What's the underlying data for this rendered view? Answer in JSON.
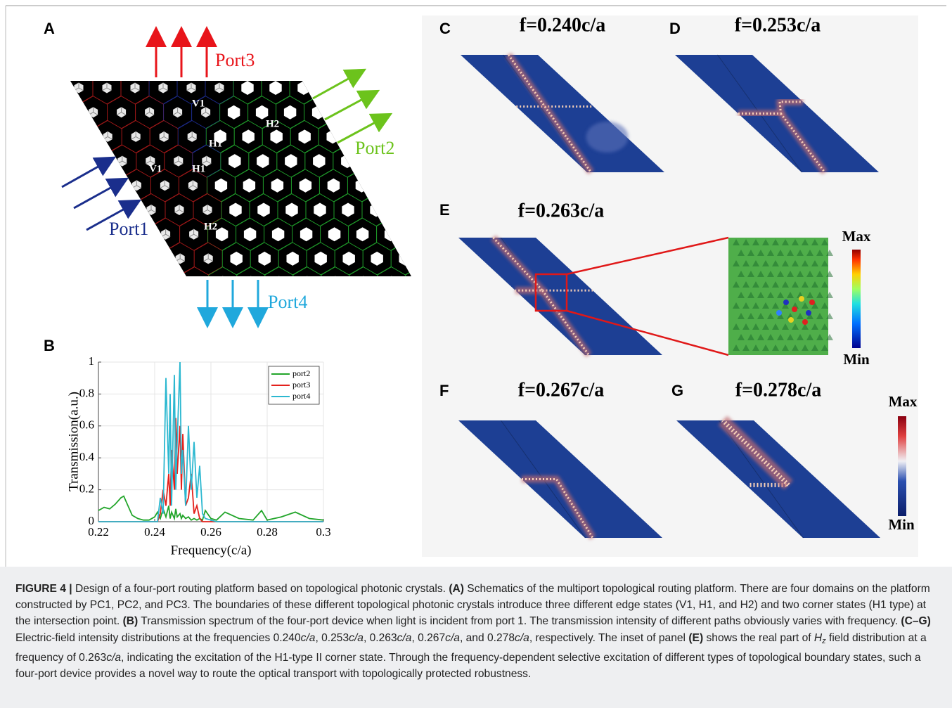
{
  "panel_a": {
    "label": "A",
    "ports": [
      "Port1",
      "Port2",
      "Port3",
      "Port4"
    ],
    "states": [
      "V1",
      "H2",
      "H1",
      "V1",
      "H1",
      "H2"
    ]
  },
  "panel_b": {
    "label": "B"
  },
  "chart_data": {
    "type": "line",
    "x_label": "Frequency(c/a)",
    "y_label": "Transmission(a.u.)",
    "x": [
      0.22,
      0.222,
      0.224,
      0.226,
      0.228,
      0.229,
      0.23,
      0.232,
      0.234,
      0.236,
      0.238,
      0.24,
      0.241,
      0.242,
      0.243,
      0.244,
      0.245,
      0.2455,
      0.246,
      0.247,
      0.2475,
      0.248,
      0.249,
      0.2495,
      0.25,
      0.251,
      0.252,
      0.253,
      0.254,
      0.255,
      0.256,
      0.257,
      0.258,
      0.26,
      0.262,
      0.265,
      0.27,
      0.275,
      0.278,
      0.28,
      0.285,
      0.29,
      0.295,
      0.3
    ],
    "series": [
      {
        "name": "port2",
        "color": "#22a52a",
        "values": [
          0.07,
          0.09,
          0.08,
          0.11,
          0.15,
          0.16,
          0.12,
          0.04,
          0.02,
          0.01,
          0.01,
          0.03,
          0.06,
          0.02,
          0.08,
          0.03,
          0.1,
          0.02,
          0.06,
          0.02,
          0.08,
          0.03,
          0.05,
          0.02,
          0.04,
          0.02,
          0.03,
          0.01,
          0.02,
          0.01,
          0.02,
          0.01,
          0.07,
          0.02,
          0.01,
          0.06,
          0.02,
          0.01,
          0.07,
          0.01,
          0.03,
          0.06,
          0.02,
          0.01
        ]
      },
      {
        "name": "port3",
        "color": "#e3211c",
        "values": [
          0,
          0,
          0,
          0,
          0,
          0,
          0,
          0,
          0,
          0,
          0,
          0,
          0,
          0.05,
          0.2,
          0.1,
          0.3,
          0.1,
          0.45,
          0.2,
          0.65,
          0.3,
          0.6,
          0.2,
          0.55,
          0.1,
          0.15,
          0.3,
          0.05,
          0.1,
          0.02,
          0,
          0,
          0,
          0,
          0,
          0,
          0,
          0,
          0,
          0,
          0,
          0,
          0
        ]
      },
      {
        "name": "port4",
        "color": "#2cb8d0",
        "values": [
          0,
          0,
          0,
          0,
          0,
          0,
          0,
          0,
          0,
          0,
          0,
          0,
          0,
          0.15,
          0.05,
          0.9,
          0.3,
          0.8,
          0.1,
          0.92,
          0.2,
          0.5,
          1,
          0.3,
          0.45,
          0.1,
          0.6,
          0.2,
          0.5,
          0.15,
          0.35,
          0.05,
          0.02,
          0.01,
          0,
          0,
          0,
          0,
          0,
          0,
          0,
          0,
          0,
          0
        ]
      }
    ],
    "xlim": [
      0.22,
      0.3
    ],
    "xticks": [
      0.22,
      0.24,
      0.26,
      0.28,
      0.3
    ],
    "ylim": [
      0,
      1
    ],
    "yticks": [
      0,
      0.2,
      0.4,
      0.6,
      0.8,
      1
    ],
    "grid": true,
    "legend": "upper right"
  },
  "field_panels": [
    {
      "label": "C",
      "title": "f=0.240c/a"
    },
    {
      "label": "D",
      "title": "f=0.253c/a"
    },
    {
      "label": "E",
      "title": "f=0.263c/a"
    },
    {
      "label": "F",
      "title": "f=0.267c/a"
    },
    {
      "label": "G",
      "title": "f=0.278c/a"
    }
  ],
  "colorbars": [
    {
      "max": "Max",
      "min": "Min"
    },
    {
      "max": "Max",
      "min": "Min"
    }
  ],
  "caption": {
    "runs": [
      {
        "text": "FIGURE 4 | ",
        "style": "bold"
      },
      {
        "text": "Design of a four-port routing platform based on topological photonic crystals. ",
        "style": "normal"
      },
      {
        "text": "(A)",
        "style": "bold"
      },
      {
        "text": " Schematics of the multiport topological routing platform. There are four domains on the platform constructed by PC1, PC2, and PC3. The boundaries of these different topological photonic crystals introduce three different edge states (V1, H1, and H2) and two corner states (H1 type) at the intersection point. ",
        "style": "normal"
      },
      {
        "text": "(B)",
        "style": "bold"
      },
      {
        "text": " Transmission spectrum of the four-port device when light is incident from port 1. The transmission intensity of different paths obviously varies with frequency. ",
        "style": "normal"
      },
      {
        "text": "(C–G)",
        "style": "bold"
      },
      {
        "text": " Electric-field intensity distributions at the frequencies 0.240",
        "style": "normal"
      },
      {
        "text": "c/a",
        "style": "italic"
      },
      {
        "text": ", 0.253",
        "style": "normal"
      },
      {
        "text": "c/a",
        "style": "italic"
      },
      {
        "text": ", 0.263",
        "style": "normal"
      },
      {
        "text": "c/a",
        "style": "italic"
      },
      {
        "text": ", 0.267",
        "style": "normal"
      },
      {
        "text": "c/a",
        "style": "italic"
      },
      {
        "text": ", and 0.278",
        "style": "normal"
      },
      {
        "text": "c/a",
        "style": "italic"
      },
      {
        "text": ", respectively. The inset of panel ",
        "style": "normal"
      },
      {
        "text": "(E)",
        "style": "bold"
      },
      {
        "text": " shows the real part of ",
        "style": "normal"
      },
      {
        "text": "H",
        "style": "italic"
      },
      {
        "text": "z",
        "style": "italic-sub"
      },
      {
        "text": " field distribution at a frequency of 0.263",
        "style": "normal"
      },
      {
        "text": "c/a",
        "style": "italic"
      },
      {
        "text": ", indicating the excitation of the H1-type II corner state. Through the frequency-dependent selective excitation of different types of topological boundary states, such a four-port device provides a novel way to route the optical transport with topologically protected robustness.",
        "style": "normal"
      }
    ]
  }
}
